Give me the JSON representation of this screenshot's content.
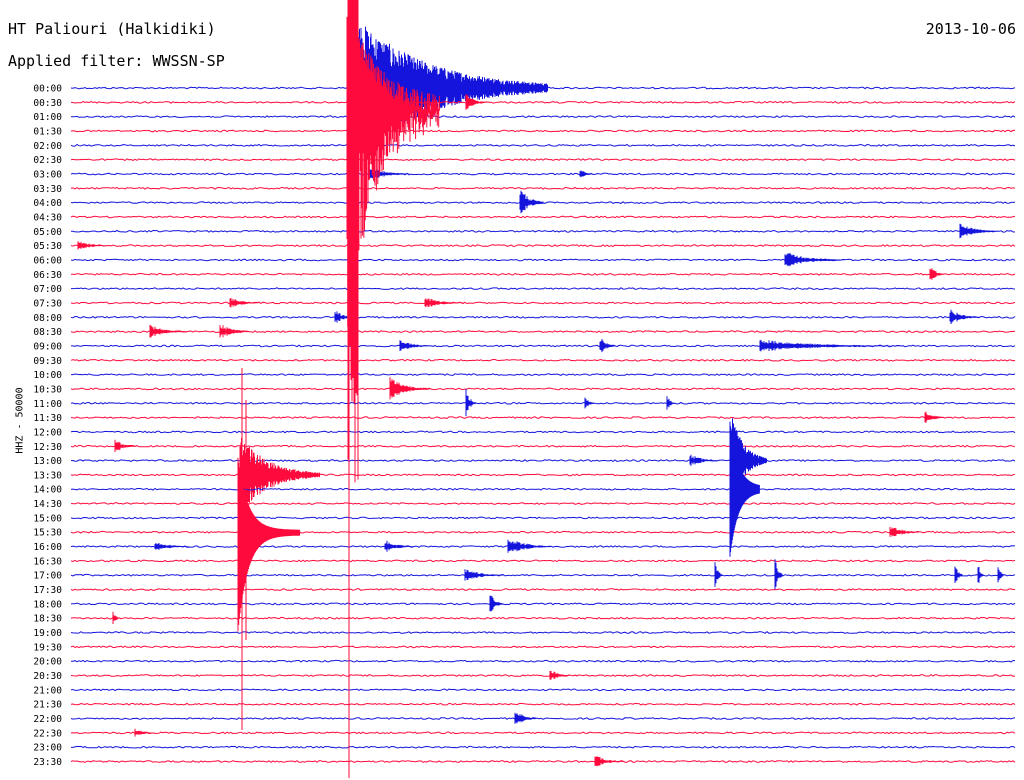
{
  "header": {
    "station": "HT Paliouri (Halkidiki)",
    "filter": "Applied filter: WWSSN-SP",
    "date": "2013-10-06"
  },
  "chart_data": {
    "type": "line",
    "title": "HT Paliouri (Halkidiki)",
    "subtitle": "Applied filter: WWSSN-SP",
    "date": "2013-10-06",
    "ylabel": "HHZ - 50000",
    "colors": [
      "#1414dc",
      "#ff0a3c"
    ],
    "rows": [
      "00:00",
      "00:30",
      "01:00",
      "01:30",
      "02:00",
      "02:30",
      "03:00",
      "03:30",
      "04:00",
      "04:30",
      "05:00",
      "05:30",
      "06:00",
      "06:30",
      "07:00",
      "07:30",
      "08:00",
      "08:30",
      "09:00",
      "09:30",
      "10:00",
      "10:30",
      "11:00",
      "11:30",
      "12:00",
      "12:30",
      "13:00",
      "13:30",
      "14:00",
      "14:30",
      "15:00",
      "15:30",
      "16:00",
      "16:30",
      "17:00",
      "17:30",
      "18:00",
      "18:30",
      "19:00",
      "19:30",
      "20:00",
      "20:30",
      "21:00",
      "21:30",
      "22:00",
      "22:30",
      "23:00",
      "23:30"
    ],
    "events": [
      {
        "row": 0,
        "x": 348,
        "amp": 80,
        "dur": 200,
        "big": true
      },
      {
        "row": 0,
        "x": 475,
        "amp": 14,
        "dur": 30
      },
      {
        "row": 1,
        "x": 466,
        "amp": 10,
        "dur": 20
      },
      {
        "row": 6,
        "x": 370,
        "amp": 8,
        "dur": 40
      },
      {
        "row": 6,
        "x": 580,
        "amp": 6,
        "dur": 14
      },
      {
        "row": 8,
        "x": 520,
        "amp": 16,
        "dur": 24
      },
      {
        "row": 10,
        "x": 960,
        "amp": 8,
        "dur": 40
      },
      {
        "row": 11,
        "x": 78,
        "amp": 6,
        "dur": 30
      },
      {
        "row": 12,
        "x": 785,
        "amp": 9,
        "dur": 60
      },
      {
        "row": 13,
        "x": 930,
        "amp": 10,
        "dur": 14
      },
      {
        "row": 15,
        "x": 230,
        "amp": 6,
        "dur": 30
      },
      {
        "row": 15,
        "x": 425,
        "amp": 6,
        "dur": 40
      },
      {
        "row": 16,
        "x": 335,
        "amp": 8,
        "dur": 20
      },
      {
        "row": 16,
        "x": 950,
        "amp": 9,
        "dur": 30
      },
      {
        "row": 17,
        "x": 150,
        "amp": 7,
        "dur": 40
      },
      {
        "row": 17,
        "x": 220,
        "amp": 9,
        "dur": 30
      },
      {
        "row": 18,
        "x": 400,
        "amp": 7,
        "dur": 30
      },
      {
        "row": 18,
        "x": 600,
        "amp": 10,
        "dur": 16
      },
      {
        "row": 18,
        "x": 760,
        "amp": 7,
        "dur": 140
      },
      {
        "row": 21,
        "x": 390,
        "amp": 13,
        "dur": 40
      },
      {
        "row": 22,
        "x": 466,
        "amp": 18,
        "dur": 10
      },
      {
        "row": 22,
        "x": 585,
        "amp": 8,
        "dur": 10
      },
      {
        "row": 22,
        "x": 667,
        "amp": 10,
        "dur": 8
      },
      {
        "row": 23,
        "x": 925,
        "amp": 8,
        "dur": 20
      },
      {
        "row": 25,
        "x": 115,
        "amp": 8,
        "dur": 20
      },
      {
        "row": 26,
        "x": 690,
        "amp": 7,
        "dur": 30
      },
      {
        "row": 27,
        "x": 240,
        "amp": 40,
        "dur": 80,
        "big": true
      },
      {
        "row": 26,
        "x": 732,
        "amp": 45,
        "dur": 35,
        "big": true
      },
      {
        "row": 31,
        "x": 890,
        "amp": 8,
        "dur": 30
      },
      {
        "row": 32,
        "x": 155,
        "amp": 6,
        "dur": 35
      },
      {
        "row": 32,
        "x": 385,
        "amp": 7,
        "dur": 30
      },
      {
        "row": 32,
        "x": 508,
        "amp": 10,
        "dur": 45
      },
      {
        "row": 34,
        "x": 465,
        "amp": 7,
        "dur": 40
      },
      {
        "row": 34,
        "x": 715,
        "amp": 14,
        "dur": 8
      },
      {
        "row": 34,
        "x": 775,
        "amp": 20,
        "dur": 8
      },
      {
        "row": 34,
        "x": 955,
        "amp": 15,
        "dur": 8
      },
      {
        "row": 34,
        "x": 978,
        "amp": 15,
        "dur": 6
      },
      {
        "row": 34,
        "x": 998,
        "amp": 15,
        "dur": 6
      },
      {
        "row": 36,
        "x": 490,
        "amp": 12,
        "dur": 14
      },
      {
        "row": 37,
        "x": 113,
        "amp": 8,
        "dur": 8
      },
      {
        "row": 41,
        "x": 550,
        "amp": 7,
        "dur": 20
      },
      {
        "row": 44,
        "x": 515,
        "amp": 10,
        "dur": 22
      },
      {
        "row": 45,
        "x": 135,
        "amp": 5,
        "dur": 20
      },
      {
        "row": 47,
        "x": 595,
        "amp": 7,
        "dur": 30
      }
    ]
  }
}
